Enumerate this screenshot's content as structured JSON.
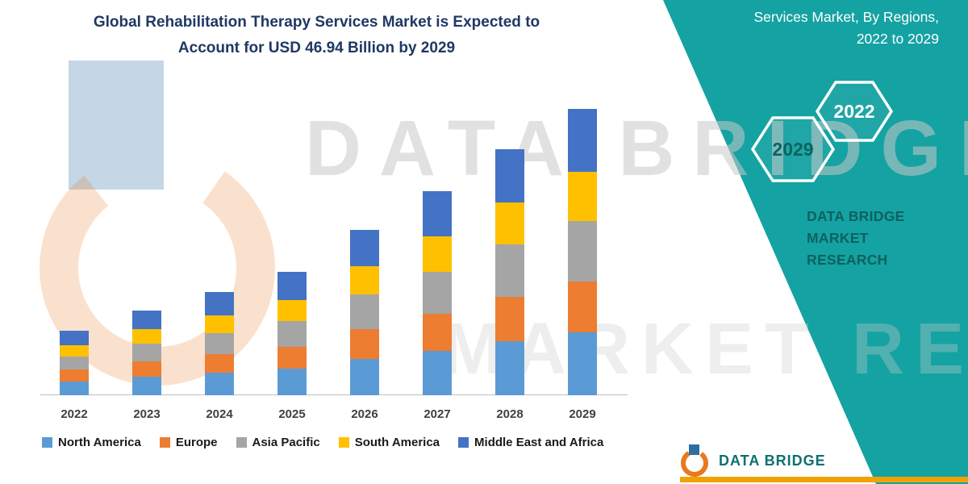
{
  "title": {
    "line1": "Global Rehabilitation Therapy Services Market is Expected to",
    "line2": "Account for USD 46.94 Billion by 2029"
  },
  "band": {
    "color": "#15a2a2",
    "heading_line1": "Services Market, By Regions,",
    "heading_line2": "2022 to 2029",
    "hexagons": [
      {
        "label": "2022"
      },
      {
        "label": "2029"
      }
    ],
    "brand_line1": "DATA BRIDGE MARKET",
    "brand_line2": "RESEARCH"
  },
  "watermark": {
    "line1": "DATA BRIDGE",
    "line2": "MARKET RESEARCH"
  },
  "footer_logo": {
    "text": "DATA BRIDGE",
    "accent_color": "#f0a202"
  },
  "chart_data": {
    "type": "bar",
    "stacked": true,
    "title": "Global Rehabilitation Therapy Services Market is Expected to Account for USD 46.94 Billion by 2029",
    "unit": "USD Billion",
    "grid": false,
    "legend_position": "bottom",
    "categories": [
      "2022",
      "2023",
      "2024",
      "2025",
      "2026",
      "2027",
      "2028",
      "2029"
    ],
    "series": [
      {
        "name": "North America",
        "color": "#5B9BD5",
        "values": [
          2.3,
          3.1,
          3.7,
          4.4,
          6.0,
          7.3,
          8.9,
          10.3
        ]
      },
      {
        "name": "Europe",
        "color": "#ED7D31",
        "values": [
          1.9,
          2.5,
          3.0,
          3.6,
          4.9,
          6.0,
          7.3,
          8.4
        ]
      },
      {
        "name": "Asia Pacific",
        "color": "#A5A5A5",
        "values": [
          2.2,
          2.9,
          3.5,
          4.2,
          5.7,
          7.0,
          8.5,
          9.9
        ]
      },
      {
        "name": "South America",
        "color": "#FFC000",
        "values": [
          1.8,
          2.4,
          2.9,
          3.4,
          4.6,
          5.7,
          6.9,
          8.0
        ]
      },
      {
        "name": "Middle East and Africa",
        "color": "#4472C4",
        "values": [
          2.4,
          3.0,
          3.8,
          4.6,
          5.9,
          7.4,
          8.7,
          10.34
        ]
      }
    ],
    "totals": [
      10.6,
      13.9,
      16.9,
      20.2,
      27.1,
      33.4,
      40.3,
      46.94
    ]
  }
}
